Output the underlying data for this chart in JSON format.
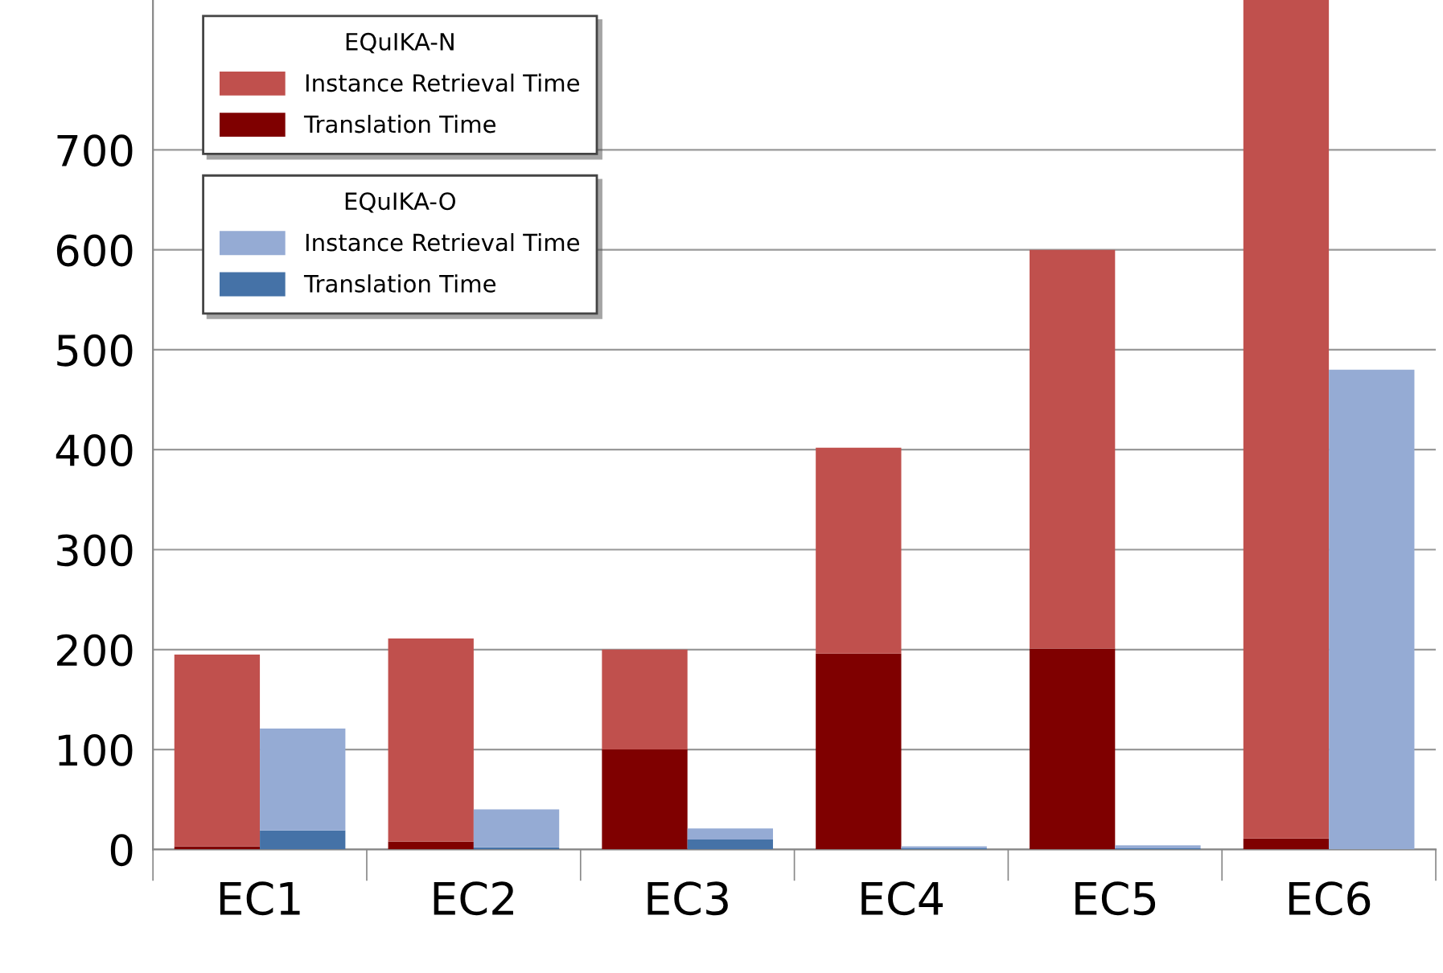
{
  "chart_data": [
    {
      "type": "bar",
      "stacked": true,
      "categories": [
        "EC1",
        "EC2",
        "EC3",
        "EC4",
        "EC5",
        "EC6"
      ],
      "series": [
        {
          "name": "Translation Time",
          "color": "#7f0000",
          "values": [
            3,
            8,
            100,
            196,
            201,
            11
          ]
        },
        {
          "name": "Instance Retrieval Time",
          "color": "#c0504d",
          "values": [
            192,
            203,
            100,
            206,
            399,
            839
          ]
        }
      ],
      "legend_title": "EQuIKA-N",
      "ylim": [
        0,
        850
      ],
      "yticks": [
        0,
        100,
        200,
        300,
        400,
        500,
        600,
        700
      ],
      "grid": "y",
      "legend": "top left"
    },
    {
      "type": "bar",
      "stacked": true,
      "categories": [
        null,
        null,
        null,
        null,
        null,
        null
      ],
      "series": [
        {
          "name": "Translation Time",
          "color": "#4572a7",
          "values": [
            19,
            2,
            10,
            1,
            1,
            0
          ]
        },
        {
          "name": "Instance Retrieval Time",
          "color": "#95abd4",
          "values": [
            102,
            38,
            11,
            2,
            3,
            480
          ]
        }
      ],
      "legend_title": "EQuIKA-O",
      "ylim": [
        0,
        850
      ],
      "yticks": [
        0,
        100,
        200,
        300,
        400,
        500,
        600,
        700
      ],
      "tick_labels": false,
      "legend": "top left"
    }
  ]
}
